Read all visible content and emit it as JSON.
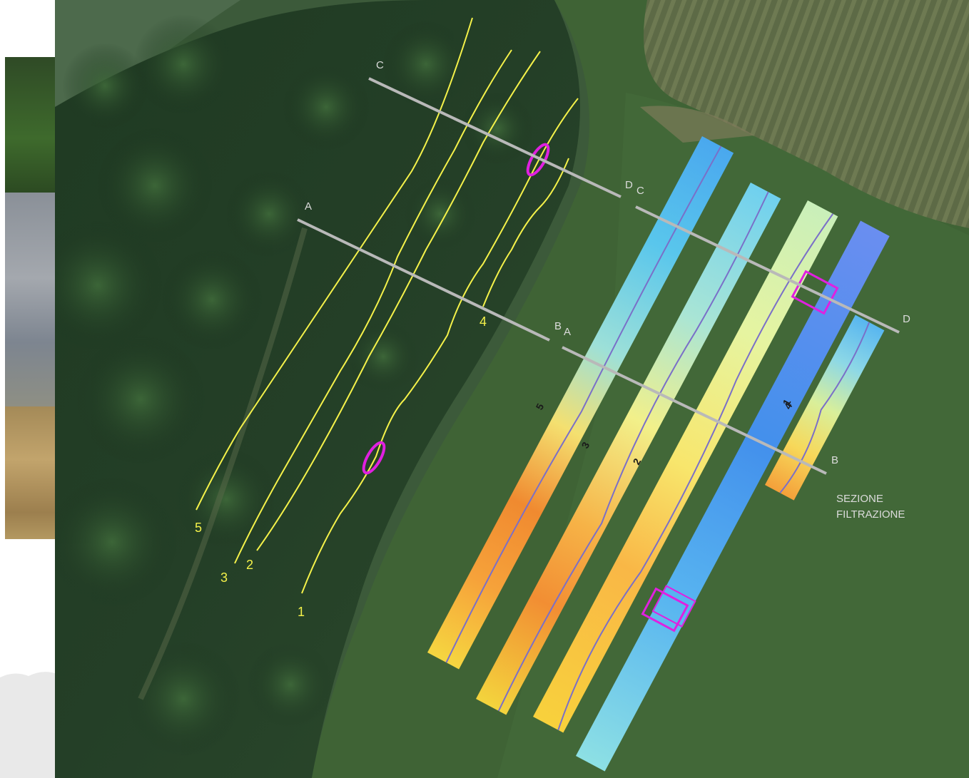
{
  "section_lines": [
    {
      "start_label": "A",
      "end_label": "B"
    },
    {
      "start_label": "C",
      "end_label": "D"
    },
    {
      "start_label": "A",
      "end_label": "B"
    },
    {
      "start_label": "C",
      "end_label": "D"
    }
  ],
  "survey_lines": [
    "1",
    "2",
    "3",
    "4",
    "5"
  ],
  "profile_labels": [
    "5",
    "3",
    "2",
    "1",
    "4"
  ],
  "caption_line1": "SEZIONE",
  "caption_line2": "FILTRAZIONE",
  "colors": {
    "survey_line": "#f5f24a",
    "anomaly_marker": "#e020e0",
    "section_line": "#b9b9b9",
    "caption": "#dcdcdc"
  }
}
